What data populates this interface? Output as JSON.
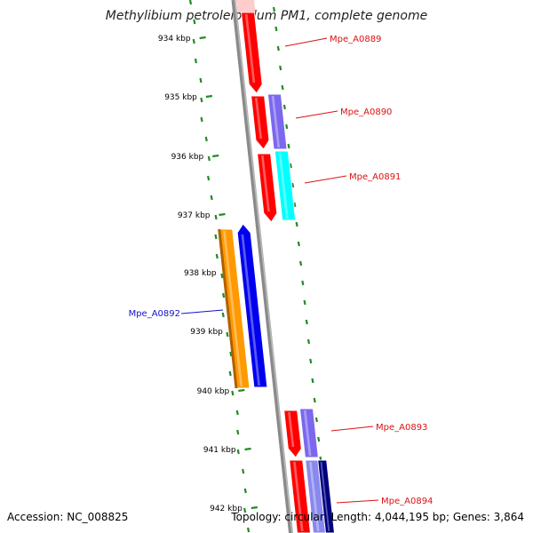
{
  "title": "Methylibium petroleiphilum PM1, complete genome",
  "footer": {
    "accession": "Accession: NC_008825",
    "summary": "Topology: circular; Length: 4,044,195 bp; Genes: 3,864"
  },
  "ticks": [
    "934 kbp",
    "935 kbp",
    "936 kbp",
    "937 kbp",
    "938 kbp",
    "939 kbp",
    "940 kbp",
    "941 kbp",
    "942 kbp"
  ],
  "genes": [
    {
      "name": "Mpe_A0889",
      "color": "#dd1111"
    },
    {
      "name": "Mpe_A0890",
      "color": "#dd1111"
    },
    {
      "name": "Mpe_A0891",
      "color": "#dd1111"
    },
    {
      "name": "Mpe_A0892",
      "color": "#1111cc"
    },
    {
      "name": "Mpe_A0893",
      "color": "#dd1111"
    },
    {
      "name": "Mpe_A0894",
      "color": "#dd1111"
    }
  ],
  "colors": {
    "backbone": "#8a8a8a",
    "gc_dots": "#228B22",
    "cds_forward": "#ff0000",
    "cds_reverse": "#0000ee",
    "cog_purple": "#7b68ee",
    "cog_cyan": "#00ffff",
    "cog_orange": "#ff9900",
    "cog_navy": "#000080"
  }
}
